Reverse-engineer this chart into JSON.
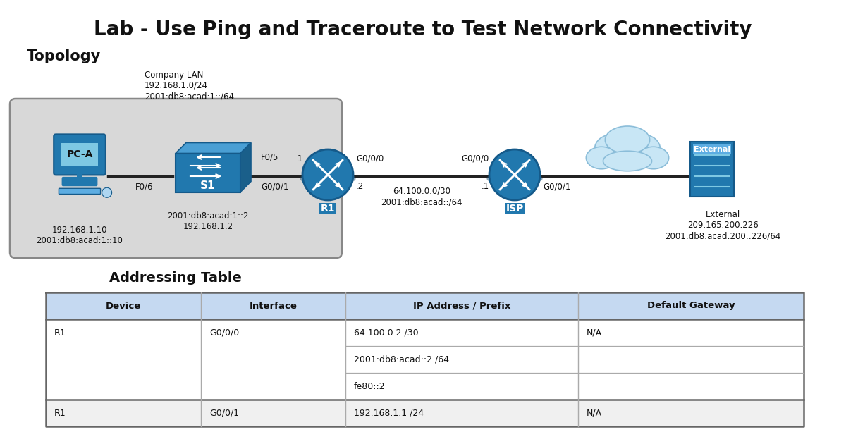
{
  "title": "Lab - Use Ping and Traceroute to Test Network Connectivity",
  "section_topology": "Topology",
  "section_table": "Addressing Table",
  "background_color": "#ffffff",
  "title_fontsize": 20,
  "section_fontsize": 15,
  "company_lan_label": "Company LAN\n192.168.1.0/24\n2001:db8:acad:1::/64",
  "pca_label": "PC-A",
  "pca_ip": "192.168.1.10\n2001:db8:acad:1::10",
  "s1_label": "S1",
  "s1_ip": "2001:db8:acad:1::2\n192.168.1.2",
  "r1_label": "R1",
  "isp_label": "ISP",
  "external_label": "External",
  "external_ip": "External\n209.165.200.226\n2001:db8:acad:200::226/64",
  "table_headers": [
    "Device",
    "Interface",
    "IP Address / Prefix",
    "Default Gateway"
  ],
  "table_rows": [
    [
      "R1",
      "G0/0/0",
      "64.100.0.2 /30",
      "N/A"
    ],
    [
      "",
      "",
      "2001:db8:acad::2 /64",
      ""
    ],
    [
      "",
      "",
      "fe80::2",
      ""
    ],
    [
      "R1",
      "G0/0/1",
      "192.168.1.1 /24",
      "N/A"
    ]
  ],
  "table_header_bg": "#c5d9f1",
  "table_row_bg": "#ffffff",
  "table_alt_row_bg": "#f0f0f0",
  "table_border_color": "#aaaaaa",
  "table_bold_border_color": "#666666",
  "device_color": "#2178ae",
  "device_edge": "#155a8a"
}
